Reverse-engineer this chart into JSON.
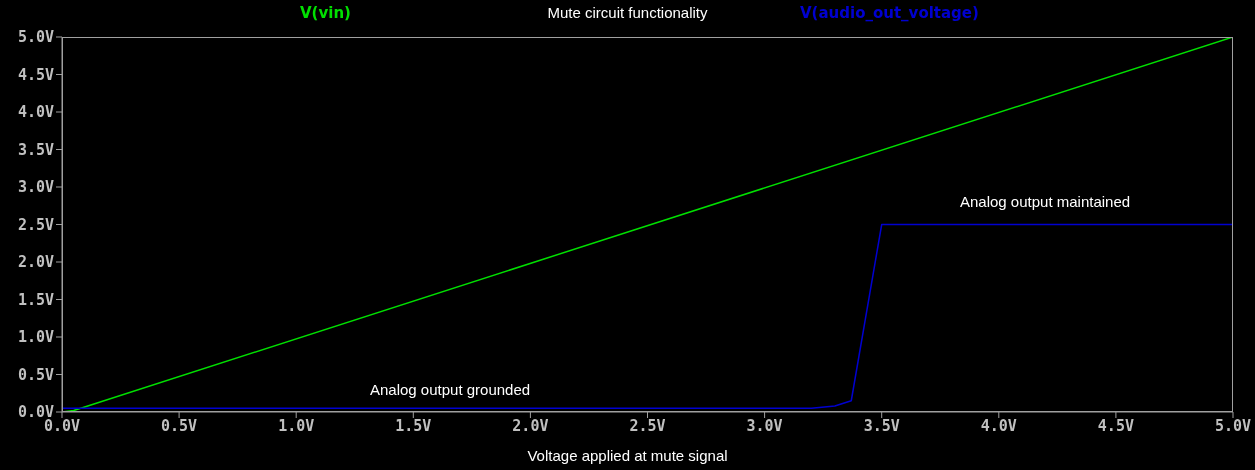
{
  "chart_data": {
    "type": "line",
    "title": "Mute circuit functionality",
    "xlabel": "Voltage applied at mute signal",
    "xlim": [
      0,
      5
    ],
    "ylim": [
      0,
      5
    ],
    "xticks": [
      {
        "value": 0,
        "label": "0.0V"
      },
      {
        "value": 0.5,
        "label": "0.5V"
      },
      {
        "value": 1,
        "label": "1.0V"
      },
      {
        "value": 1.5,
        "label": "1.5V"
      },
      {
        "value": 2,
        "label": "2.0V"
      },
      {
        "value": 2.5,
        "label": "2.5V"
      },
      {
        "value": 3,
        "label": "3.0V"
      },
      {
        "value": 3.5,
        "label": "3.5V"
      },
      {
        "value": 4,
        "label": "4.0V"
      },
      {
        "value": 4.5,
        "label": "4.5V"
      },
      {
        "value": 5,
        "label": "5.0V"
      }
    ],
    "yticks": [
      {
        "value": 0,
        "label": "0.0V"
      },
      {
        "value": 0.5,
        "label": "0.5V"
      },
      {
        "value": 1,
        "label": "1.0V"
      },
      {
        "value": 1.5,
        "label": "1.5V"
      },
      {
        "value": 2,
        "label": "2.0V"
      },
      {
        "value": 2.5,
        "label": "2.5V"
      },
      {
        "value": 3,
        "label": "3.0V"
      },
      {
        "value": 3.5,
        "label": "3.5V"
      },
      {
        "value": 4,
        "label": "4.0V"
      },
      {
        "value": 4.5,
        "label": "4.5V"
      },
      {
        "value": 5,
        "label": "5.0V"
      }
    ],
    "series": [
      {
        "name": "V(vin)",
        "color": "#00e000",
        "x": [
          0,
          0.05,
          0.1,
          5
        ],
        "values": [
          0,
          0.02,
          0.07,
          5
        ]
      },
      {
        "name": "V(audio_out_voltage)",
        "color": "#0000d0",
        "x": [
          0,
          3.2,
          3.3,
          3.37,
          3.5,
          5
        ],
        "values": [
          0.05,
          0.05,
          0.08,
          0.15,
          2.5,
          2.5
        ]
      }
    ],
    "annotations": [
      "Analog output grounded",
      "Analog output maintained"
    ],
    "legend": "top",
    "marker": "none",
    "line_style": "solid"
  }
}
